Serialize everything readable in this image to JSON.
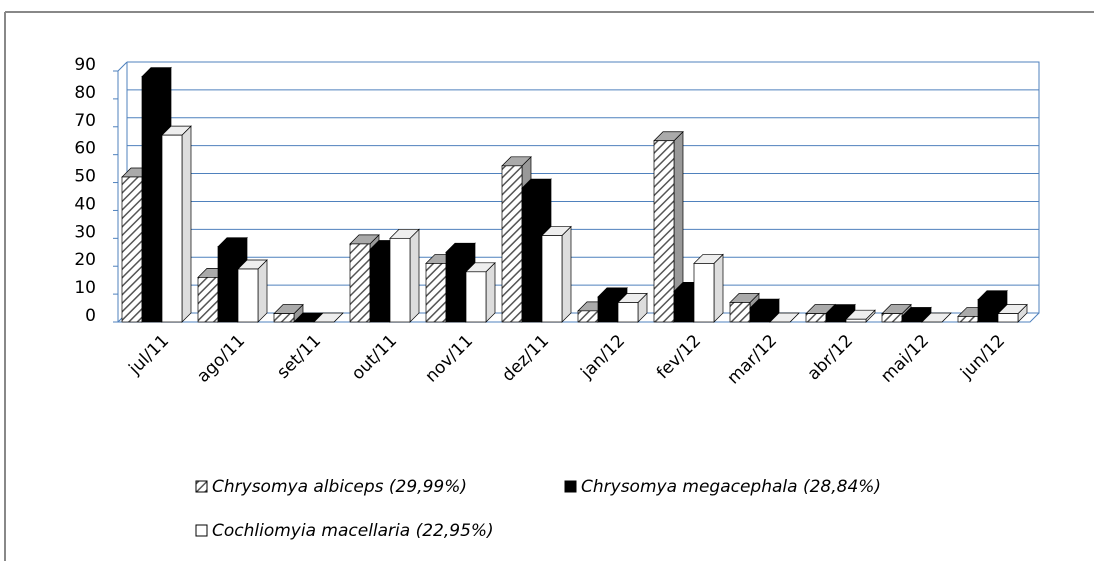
{
  "chart_data": {
    "type": "bar3d",
    "categories": [
      "jul/11",
      "ago/11",
      "set/11",
      "out/11",
      "nov/11",
      "dez/11",
      "jan/12",
      "fev/12",
      "mar/12",
      "abr/12",
      "mai/12",
      "jun/12"
    ],
    "series": [
      {
        "name": "Chrysomya albiceps (29,99%)",
        "color": "#bfbfbf",
        "pattern": "hatch",
        "values": [
          52,
          16,
          3,
          28,
          21,
          56,
          4,
          65,
          7,
          3,
          3,
          2
        ]
      },
      {
        "name": "Chrysomya megacephala (28,84%)",
        "color": "#000000",
        "values": [
          88,
          27,
          0,
          26,
          25,
          48,
          9,
          11,
          5,
          3,
          2,
          8
        ]
      },
      {
        "name": "Cochliomyia macellaria (22,95%)",
        "color": "#ffffff",
        "values": [
          67,
          19,
          0,
          30,
          18,
          31,
          7,
          21,
          0,
          1,
          0,
          3
        ]
      }
    ],
    "ylim": [
      0,
      90
    ],
    "yticks": [
      0,
      10,
      20,
      30,
      40,
      50,
      60,
      70,
      80,
      90
    ],
    "grid": true
  }
}
